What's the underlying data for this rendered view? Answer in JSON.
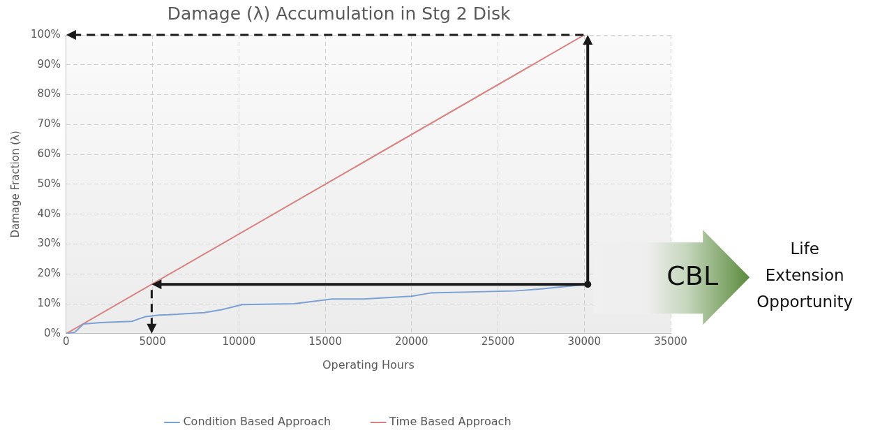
{
  "chart_data": {
    "type": "line",
    "title": "Damage (λ) Accumulation in Stg 2 Disk",
    "xlabel": "Operating Hours",
    "ylabel": "Damage Fraction (λ)",
    "xlim": [
      0,
      35000
    ],
    "xticks": [
      0,
      5000,
      10000,
      15000,
      20000,
      25000,
      30000,
      35000
    ],
    "ylim": [
      0,
      100
    ],
    "yticks": [
      {
        "value": 0,
        "label": "0%"
      },
      {
        "value": 10,
        "label": "10%"
      },
      {
        "value": 20,
        "label": "20%"
      },
      {
        "value": 30,
        "label": "30%"
      },
      {
        "value": 40,
        "label": "40%"
      },
      {
        "value": 50,
        "label": "50%"
      },
      {
        "value": 60,
        "label": "60%"
      },
      {
        "value": 70,
        "label": "70%"
      },
      {
        "value": 80,
        "label": "80%"
      },
      {
        "value": 90,
        "label": "90%"
      },
      {
        "value": 100,
        "label": "100%"
      }
    ],
    "grid": true,
    "legend": "bottom",
    "marker": "none",
    "line_style": "solid",
    "annotations": [
      "CBL",
      "Life Extension Opportunity"
    ],
    "series": [
      {
        "name": "Condition Based Approach",
        "color": "#7ba0d4",
        "x": [
          0,
          500,
          1000,
          2000,
          3800,
          4600,
          5400,
          5900,
          8000,
          9000,
          10200,
          13200,
          15400,
          17200,
          20000,
          21100,
          26000,
          27400,
          30200
        ],
        "values": [
          0,
          0.5,
          3.2,
          3.7,
          4.1,
          5.7,
          6.2,
          6.3,
          7.0,
          8.0,
          9.7,
          10.0,
          11.6,
          11.6,
          12.5,
          13.6,
          14.3,
          14.9,
          16.5
        ]
      },
      {
        "name": "Time Based Approach",
        "color": "#d98080",
        "x": [
          0,
          30000
        ],
        "values": [
          0,
          100
        ]
      }
    ]
  }
}
